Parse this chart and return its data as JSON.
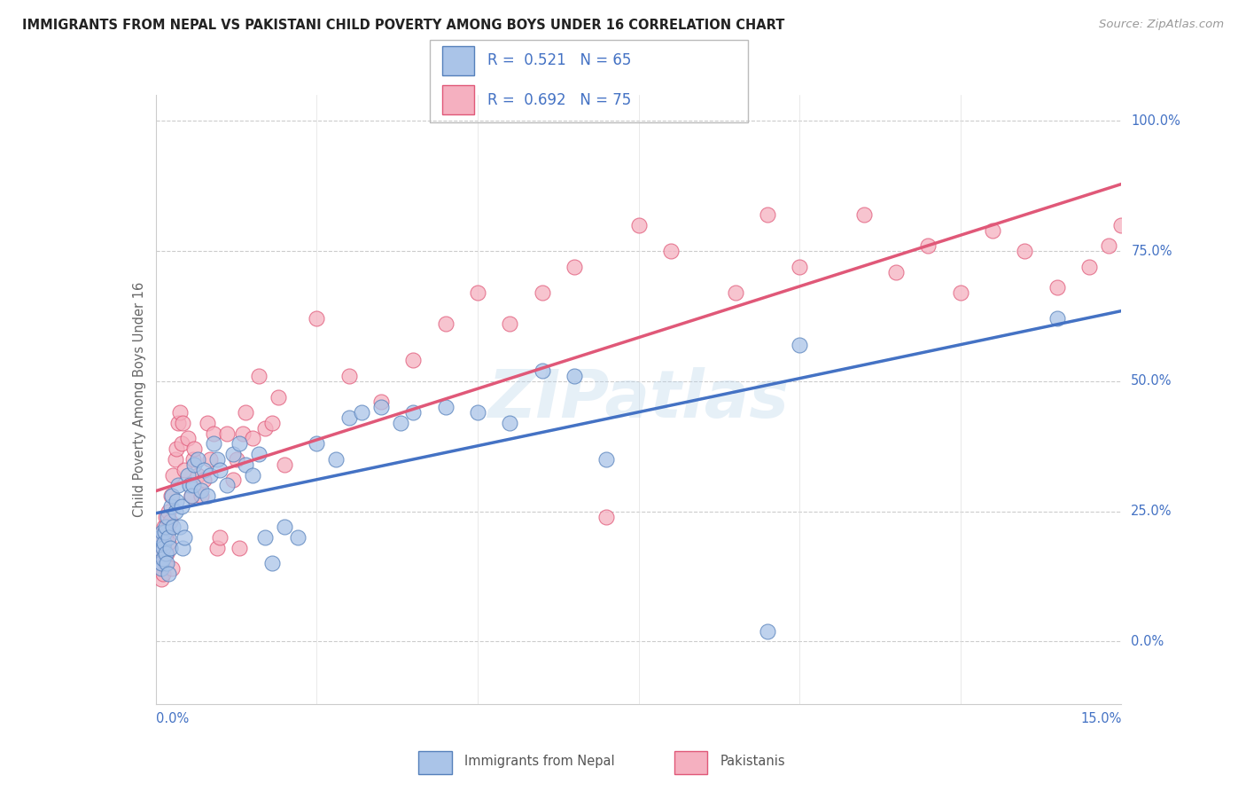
{
  "title": "IMMIGRANTS FROM NEPAL VS PAKISTANI CHILD POVERTY AMONG BOYS UNDER 16 CORRELATION CHART",
  "source": "Source: ZipAtlas.com",
  "ylabel": "Child Poverty Among Boys Under 16",
  "xlim": [
    0.0,
    15.0
  ],
  "ylim": [
    -12.0,
    105.0
  ],
  "yticks": [
    0.0,
    25.0,
    50.0,
    75.0,
    100.0
  ],
  "xtick_lines": [
    0.0,
    2.5,
    5.0,
    7.5,
    10.0,
    12.5,
    15.0
  ],
  "nepal_R": 0.521,
  "nepal_N": 65,
  "pak_R": 0.692,
  "pak_N": 75,
  "nepal_fill": "#aac4e8",
  "nepal_edge": "#5580bb",
  "pak_fill": "#f5b0c0",
  "pak_edge": "#e05878",
  "nepal_line": "#4472c4",
  "pak_line": "#e05878",
  "legend_label_nepal": "Immigrants from Nepal",
  "legend_label_pak": "Pakistanis",
  "watermark": "ZIPatlas",
  "nepal_points": [
    [
      0.05,
      18
    ],
    [
      0.07,
      20
    ],
    [
      0.08,
      14
    ],
    [
      0.09,
      15
    ],
    [
      0.1,
      21
    ],
    [
      0.11,
      18
    ],
    [
      0.12,
      16
    ],
    [
      0.13,
      19
    ],
    [
      0.14,
      21
    ],
    [
      0.15,
      17
    ],
    [
      0.16,
      22
    ],
    [
      0.17,
      15
    ],
    [
      0.18,
      24
    ],
    [
      0.19,
      13
    ],
    [
      0.2,
      20
    ],
    [
      0.22,
      18
    ],
    [
      0.24,
      26
    ],
    [
      0.25,
      28
    ],
    [
      0.27,
      22
    ],
    [
      0.3,
      25
    ],
    [
      0.32,
      27
    ],
    [
      0.35,
      30
    ],
    [
      0.38,
      22
    ],
    [
      0.4,
      26
    ],
    [
      0.42,
      18
    ],
    [
      0.45,
      20
    ],
    [
      0.5,
      32
    ],
    [
      0.52,
      30
    ],
    [
      0.55,
      28
    ],
    [
      0.58,
      30
    ],
    [
      0.6,
      34
    ],
    [
      0.65,
      35
    ],
    [
      0.7,
      29
    ],
    [
      0.75,
      33
    ],
    [
      0.8,
      28
    ],
    [
      0.85,
      32
    ],
    [
      0.9,
      38
    ],
    [
      0.95,
      35
    ],
    [
      1.0,
      33
    ],
    [
      1.1,
      30
    ],
    [
      1.2,
      36
    ],
    [
      1.3,
      38
    ],
    [
      1.4,
      34
    ],
    [
      1.5,
      32
    ],
    [
      1.6,
      36
    ],
    [
      1.7,
      20
    ],
    [
      1.8,
      15
    ],
    [
      2.0,
      22
    ],
    [
      2.2,
      20
    ],
    [
      2.5,
      38
    ],
    [
      2.8,
      35
    ],
    [
      3.0,
      43
    ],
    [
      3.2,
      44
    ],
    [
      3.5,
      45
    ],
    [
      3.8,
      42
    ],
    [
      4.0,
      44
    ],
    [
      4.5,
      45
    ],
    [
      5.0,
      44
    ],
    [
      5.5,
      42
    ],
    [
      6.0,
      52
    ],
    [
      6.5,
      51
    ],
    [
      7.0,
      35
    ],
    [
      9.5,
      2
    ],
    [
      10.0,
      57
    ],
    [
      14.0,
      62
    ]
  ],
  "pak_points": [
    [
      0.05,
      14
    ],
    [
      0.07,
      17
    ],
    [
      0.08,
      12
    ],
    [
      0.09,
      15
    ],
    [
      0.1,
      20
    ],
    [
      0.11,
      13
    ],
    [
      0.12,
      18
    ],
    [
      0.13,
      22
    ],
    [
      0.14,
      15
    ],
    [
      0.15,
      20
    ],
    [
      0.16,
      24
    ],
    [
      0.17,
      17
    ],
    [
      0.18,
      21
    ],
    [
      0.19,
      25
    ],
    [
      0.2,
      19
    ],
    [
      0.22,
      23
    ],
    [
      0.24,
      28
    ],
    [
      0.25,
      14
    ],
    [
      0.27,
      32
    ],
    [
      0.3,
      35
    ],
    [
      0.32,
      37
    ],
    [
      0.35,
      42
    ],
    [
      0.38,
      44
    ],
    [
      0.4,
      38
    ],
    [
      0.42,
      42
    ],
    [
      0.45,
      33
    ],
    [
      0.5,
      39
    ],
    [
      0.55,
      28
    ],
    [
      0.58,
      35
    ],
    [
      0.6,
      37
    ],
    [
      0.65,
      32
    ],
    [
      0.7,
      28
    ],
    [
      0.75,
      31
    ],
    [
      0.8,
      42
    ],
    [
      0.85,
      35
    ],
    [
      0.9,
      40
    ],
    [
      0.95,
      18
    ],
    [
      1.0,
      20
    ],
    [
      1.1,
      40
    ],
    [
      1.2,
      31
    ],
    [
      1.25,
      35
    ],
    [
      1.3,
      18
    ],
    [
      1.35,
      40
    ],
    [
      1.4,
      44
    ],
    [
      1.5,
      39
    ],
    [
      1.6,
      51
    ],
    [
      1.7,
      41
    ],
    [
      1.8,
      42
    ],
    [
      1.9,
      47
    ],
    [
      2.0,
      34
    ],
    [
      2.5,
      62
    ],
    [
      3.0,
      51
    ],
    [
      3.5,
      46
    ],
    [
      4.0,
      54
    ],
    [
      4.5,
      61
    ],
    [
      5.0,
      67
    ],
    [
      5.5,
      61
    ],
    [
      6.0,
      67
    ],
    [
      6.5,
      72
    ],
    [
      7.0,
      24
    ],
    [
      7.5,
      80
    ],
    [
      8.0,
      75
    ],
    [
      9.0,
      67
    ],
    [
      9.5,
      82
    ],
    [
      10.0,
      72
    ],
    [
      11.0,
      82
    ],
    [
      11.5,
      71
    ],
    [
      12.0,
      76
    ],
    [
      12.5,
      67
    ],
    [
      13.0,
      79
    ],
    [
      13.5,
      75
    ],
    [
      14.0,
      68
    ],
    [
      14.5,
      72
    ],
    [
      14.8,
      76
    ],
    [
      15.0,
      80
    ]
  ]
}
